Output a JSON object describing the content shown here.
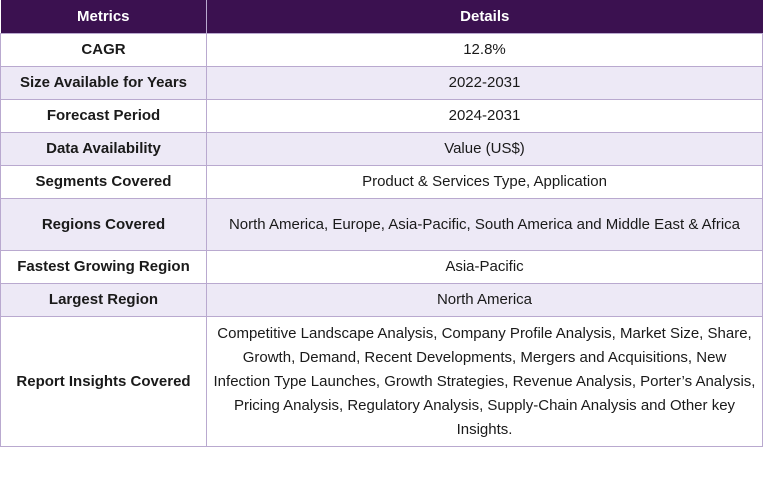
{
  "table": {
    "headers": [
      "Metrics",
      "Details"
    ],
    "rows": [
      {
        "metric": "CAGR",
        "detail": "12.8%"
      },
      {
        "metric": "Size Available for Years",
        "detail": "2022-2031"
      },
      {
        "metric": "Forecast Period",
        "detail": "2024-2031"
      },
      {
        "metric": "Data Availability",
        "detail": "Value (US$)"
      },
      {
        "metric": "Segments Covered",
        "detail": "Product & Services Type, Application"
      },
      {
        "metric": "Regions Covered",
        "detail": "North America, Europe, Asia-Pacific, South America and Middle East & Africa"
      },
      {
        "metric": "Fastest Growing Region",
        "detail": "Asia-Pacific"
      },
      {
        "metric": "Largest Region",
        "detail": "North America"
      },
      {
        "metric": "Report Insights Covered",
        "detail": "Competitive Landscape Analysis, Company Profile Analysis, Market Size, Share, Growth, Demand, Recent Developments, Mergers and Acquisitions, New Infection Type Launches, Growth Strategies, Revenue Analysis, Porter’s Analysis, Pricing Analysis, Regulatory Analysis, Supply-Chain Analysis and Other key Insights."
      }
    ]
  },
  "colors": {
    "header_bg": "#3b1150",
    "row_alt_bg": "#ede9f6",
    "border": "#b9a9cf"
  }
}
